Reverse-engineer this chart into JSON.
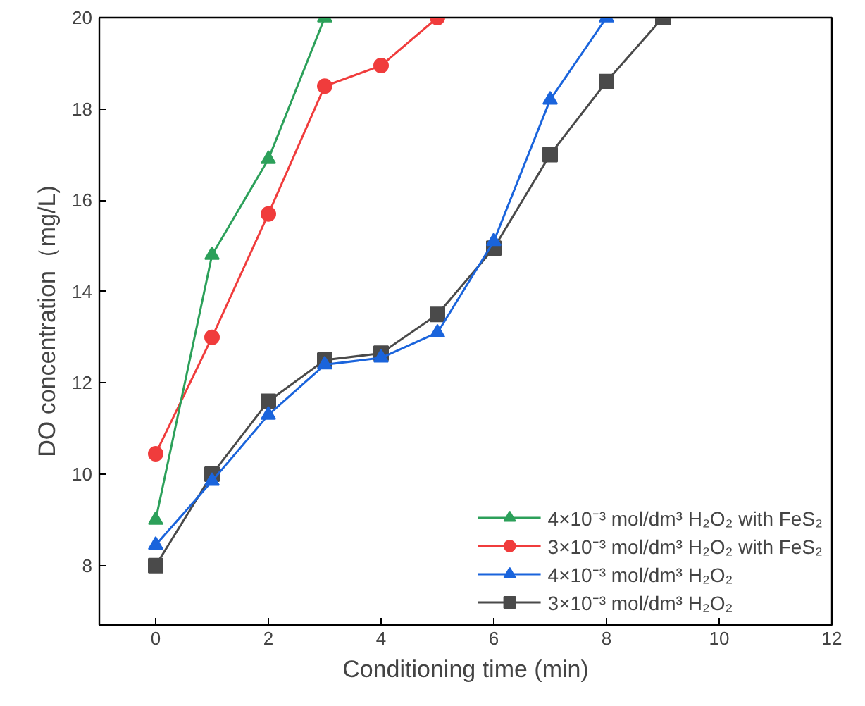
{
  "chart_data": {
    "type": "line",
    "xlabel": "Conditioning time (min)",
    "ylabel": "DO concentration（mg/L)",
    "xlim": [
      -1,
      12
    ],
    "xticks": [
      0,
      2,
      4,
      6,
      8,
      10,
      12
    ],
    "ylim": [
      6.7,
      20
    ],
    "yticks": [
      8,
      10,
      12,
      14,
      16,
      18,
      20
    ],
    "grid": false,
    "legend": "bottom right",
    "series": [
      {
        "name": "4×10⁻³ mol/dm³ H₂O₂ with FeS₂",
        "color": "#2ca05a",
        "marker": "triangle",
        "x": [
          0,
          1,
          2,
          3
        ],
        "values": [
          9.0,
          14.8,
          16.9,
          20.0
        ]
      },
      {
        "name": "3×10⁻³ mol/dm³ H₂O₂ with FeS₂",
        "color": "#f03c3c",
        "marker": "circle",
        "x": [
          0,
          1,
          2,
          3,
          4,
          5
        ],
        "values": [
          10.45,
          13.0,
          15.7,
          18.5,
          18.95,
          20.0
        ]
      },
      {
        "name": "4×10⁻³ mol/dm³ H₂O₂",
        "color": "#1a64dc",
        "marker": "triangle",
        "x": [
          0,
          1,
          2,
          3,
          4,
          5,
          6,
          7,
          8
        ],
        "values": [
          8.45,
          9.85,
          11.3,
          12.4,
          12.55,
          13.1,
          15.1,
          18.2,
          20.0
        ]
      },
      {
        "name": "3×10⁻³ mol/dm³ H₂O₂",
        "color": "#4a4a4a",
        "marker": "square",
        "x": [
          0,
          1,
          2,
          3,
          4,
          5,
          6,
          7,
          8,
          9
        ],
        "values": [
          8.0,
          10.0,
          11.6,
          12.5,
          12.65,
          13.5,
          14.95,
          17.0,
          18.6,
          20.0
        ]
      }
    ]
  }
}
